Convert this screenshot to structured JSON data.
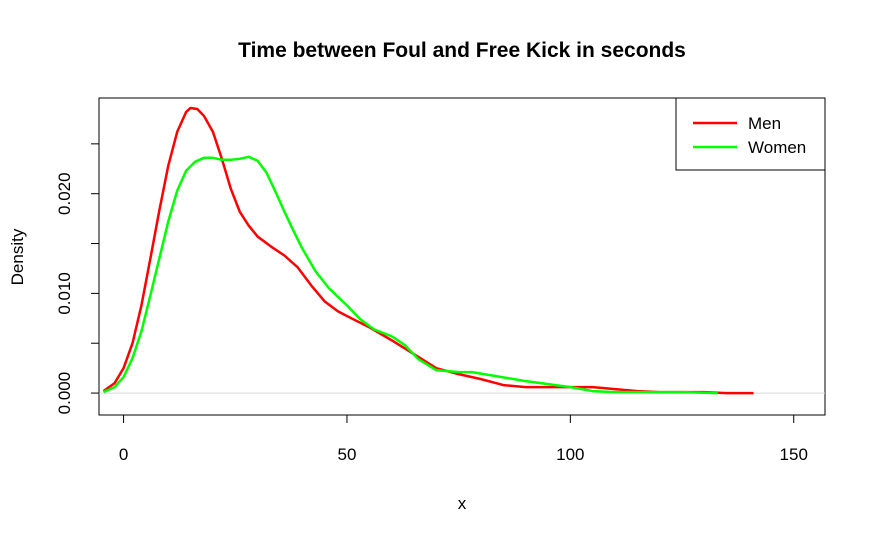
{
  "chart_data": {
    "type": "line",
    "title": "Time between Foul and Free Kick in seconds",
    "xlabel": "x",
    "ylabel": "Density",
    "xlim": [
      -5.5,
      157
    ],
    "ylim": [
      -0.0022,
      0.0296
    ],
    "x_ticks": [
      0,
      50,
      100,
      150
    ],
    "y_ticks": [
      0.0,
      0.005,
      0.01,
      0.015,
      0.02,
      0.025
    ],
    "y_tick_labels": [
      "0.000",
      "",
      "0.010",
      "",
      "0.020",
      ""
    ],
    "legend_position": "top-right",
    "zero_line": true,
    "series": [
      {
        "name": "Men",
        "color": "#ff0000",
        "points": [
          [
            -4.5,
            0.0002
          ],
          [
            -2,
            0.001
          ],
          [
            0,
            0.0025
          ],
          [
            2,
            0.005
          ],
          [
            4,
            0.0088
          ],
          [
            6,
            0.0135
          ],
          [
            8,
            0.0183
          ],
          [
            10,
            0.0228
          ],
          [
            12,
            0.0262
          ],
          [
            14,
            0.0282
          ],
          [
            15,
            0.0286
          ],
          [
            16.5,
            0.0285
          ],
          [
            18,
            0.0278
          ],
          [
            20,
            0.0262
          ],
          [
            22,
            0.0235
          ],
          [
            24,
            0.0205
          ],
          [
            26,
            0.0182
          ],
          [
            28,
            0.0168
          ],
          [
            30,
            0.0157
          ],
          [
            33,
            0.0147
          ],
          [
            36,
            0.0138
          ],
          [
            39,
            0.0126
          ],
          [
            42,
            0.0108
          ],
          [
            45,
            0.0092
          ],
          [
            48,
            0.0082
          ],
          [
            51,
            0.0075
          ],
          [
            55,
            0.0066
          ],
          [
            60,
            0.0053
          ],
          [
            65,
            0.0039
          ],
          [
            70,
            0.0025
          ],
          [
            75,
            0.0019
          ],
          [
            80,
            0.0014
          ],
          [
            85,
            0.0008
          ],
          [
            90,
            0.0006
          ],
          [
            95,
            0.0006
          ],
          [
            100,
            0.0006
          ],
          [
            105,
            0.0006
          ],
          [
            110,
            0.0004
          ],
          [
            115,
            0.0002
          ],
          [
            120,
            0.0001
          ],
          [
            125,
            0.0001
          ],
          [
            130,
            0.0001
          ],
          [
            135,
            0.0
          ],
          [
            141,
            0.0
          ]
        ]
      },
      {
        "name": "Women",
        "color": "#00ff00",
        "points": [
          [
            -4.5,
            0.0001
          ],
          [
            -2,
            0.0006
          ],
          [
            0,
            0.0016
          ],
          [
            2,
            0.0035
          ],
          [
            4,
            0.0062
          ],
          [
            6,
            0.0098
          ],
          [
            8,
            0.0135
          ],
          [
            10,
            0.0172
          ],
          [
            12,
            0.0203
          ],
          [
            14,
            0.0223
          ],
          [
            16,
            0.0232
          ],
          [
            18,
            0.0236
          ],
          [
            20,
            0.0236
          ],
          [
            22,
            0.0234
          ],
          [
            24,
            0.0234
          ],
          [
            26,
            0.0235
          ],
          [
            28,
            0.0237
          ],
          [
            30,
            0.0233
          ],
          [
            32,
            0.0221
          ],
          [
            34,
            0.0202
          ],
          [
            36,
            0.0182
          ],
          [
            38,
            0.0163
          ],
          [
            40,
            0.0145
          ],
          [
            43,
            0.0122
          ],
          [
            46,
            0.0105
          ],
          [
            50,
            0.0088
          ],
          [
            53,
            0.0074
          ],
          [
            56,
            0.0064
          ],
          [
            60,
            0.0057
          ],
          [
            63,
            0.0048
          ],
          [
            66,
            0.0034
          ],
          [
            70,
            0.0023
          ],
          [
            75,
            0.0021
          ],
          [
            78,
            0.0021
          ],
          [
            82,
            0.0018
          ],
          [
            86,
            0.0015
          ],
          [
            90,
            0.0012
          ],
          [
            95,
            0.0009
          ],
          [
            100,
            0.0006
          ],
          [
            105,
            0.0002
          ],
          [
            110,
            0.0001
          ],
          [
            115,
            0.0001
          ],
          [
            120,
            0.0001
          ],
          [
            125,
            0.0001
          ],
          [
            133,
            0.0
          ]
        ]
      }
    ]
  }
}
